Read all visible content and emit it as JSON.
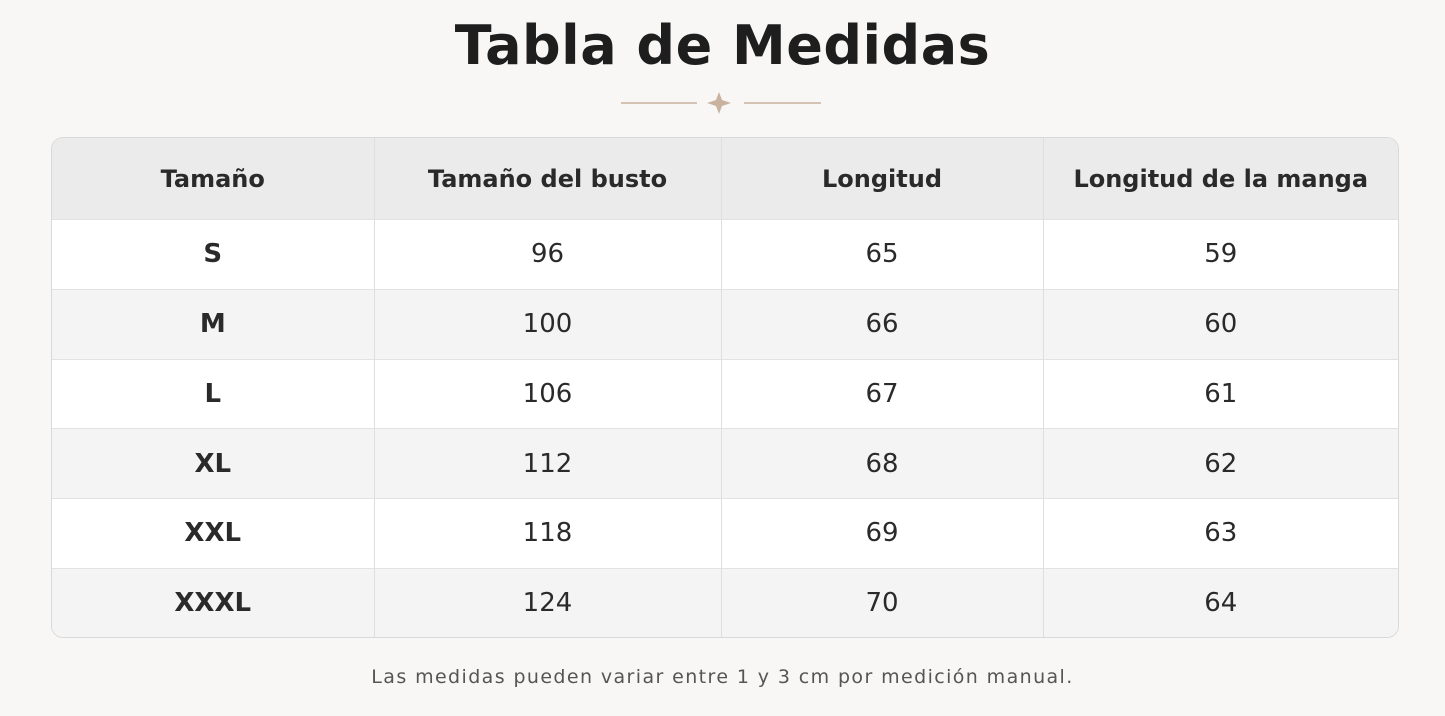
{
  "header": {
    "title": "Tabla de Medidas"
  },
  "table": {
    "columns": [
      "Tamaño",
      "Tamaño del busto",
      "Longitud",
      "Longitud de la manga"
    ],
    "rows": [
      [
        "S",
        96,
        65,
        59
      ],
      [
        "M",
        100,
        66,
        60
      ],
      [
        "L",
        106,
        67,
        61
      ],
      [
        "XL",
        112,
        68,
        62
      ],
      [
        "XXL",
        118,
        69,
        63
      ],
      [
        "XXXL",
        124,
        70,
        64
      ]
    ]
  },
  "footnote": "Las medidas pueden variar entre 1 y 3 cm por medición manual."
}
